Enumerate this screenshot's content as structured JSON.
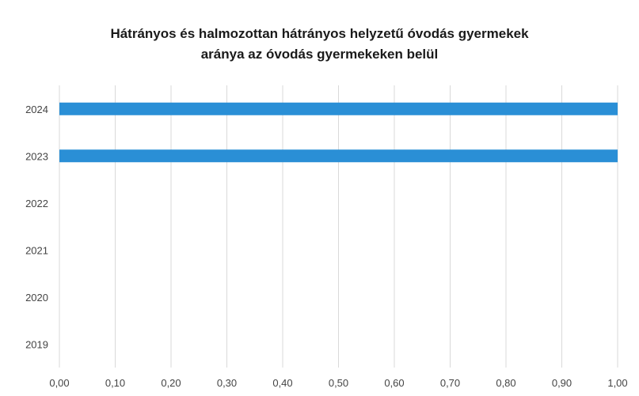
{
  "chart_data": {
    "type": "bar",
    "orientation": "horizontal",
    "title_lines": [
      "Hátrányos és halmozottan hátrányos helyzetű óvodás gyermekek",
      "aránya az óvodás gyermekeken belül"
    ],
    "categories": [
      "2019",
      "2020",
      "2021",
      "2022",
      "2023",
      "2024"
    ],
    "values": [
      0,
      0,
      0,
      0,
      1.0,
      1.0
    ],
    "xlim": [
      0,
      1.0
    ],
    "x_ticks": [
      "0,00",
      "0,10",
      "0,20",
      "0,30",
      "0,40",
      "0,50",
      "0,60",
      "0,70",
      "0,80",
      "0,90",
      "1,00"
    ],
    "grid": "vertical",
    "legend": "none",
    "colors": {
      "bar": "#2a8fd6",
      "grid": "#d9d9d9",
      "text": "#444444"
    }
  }
}
